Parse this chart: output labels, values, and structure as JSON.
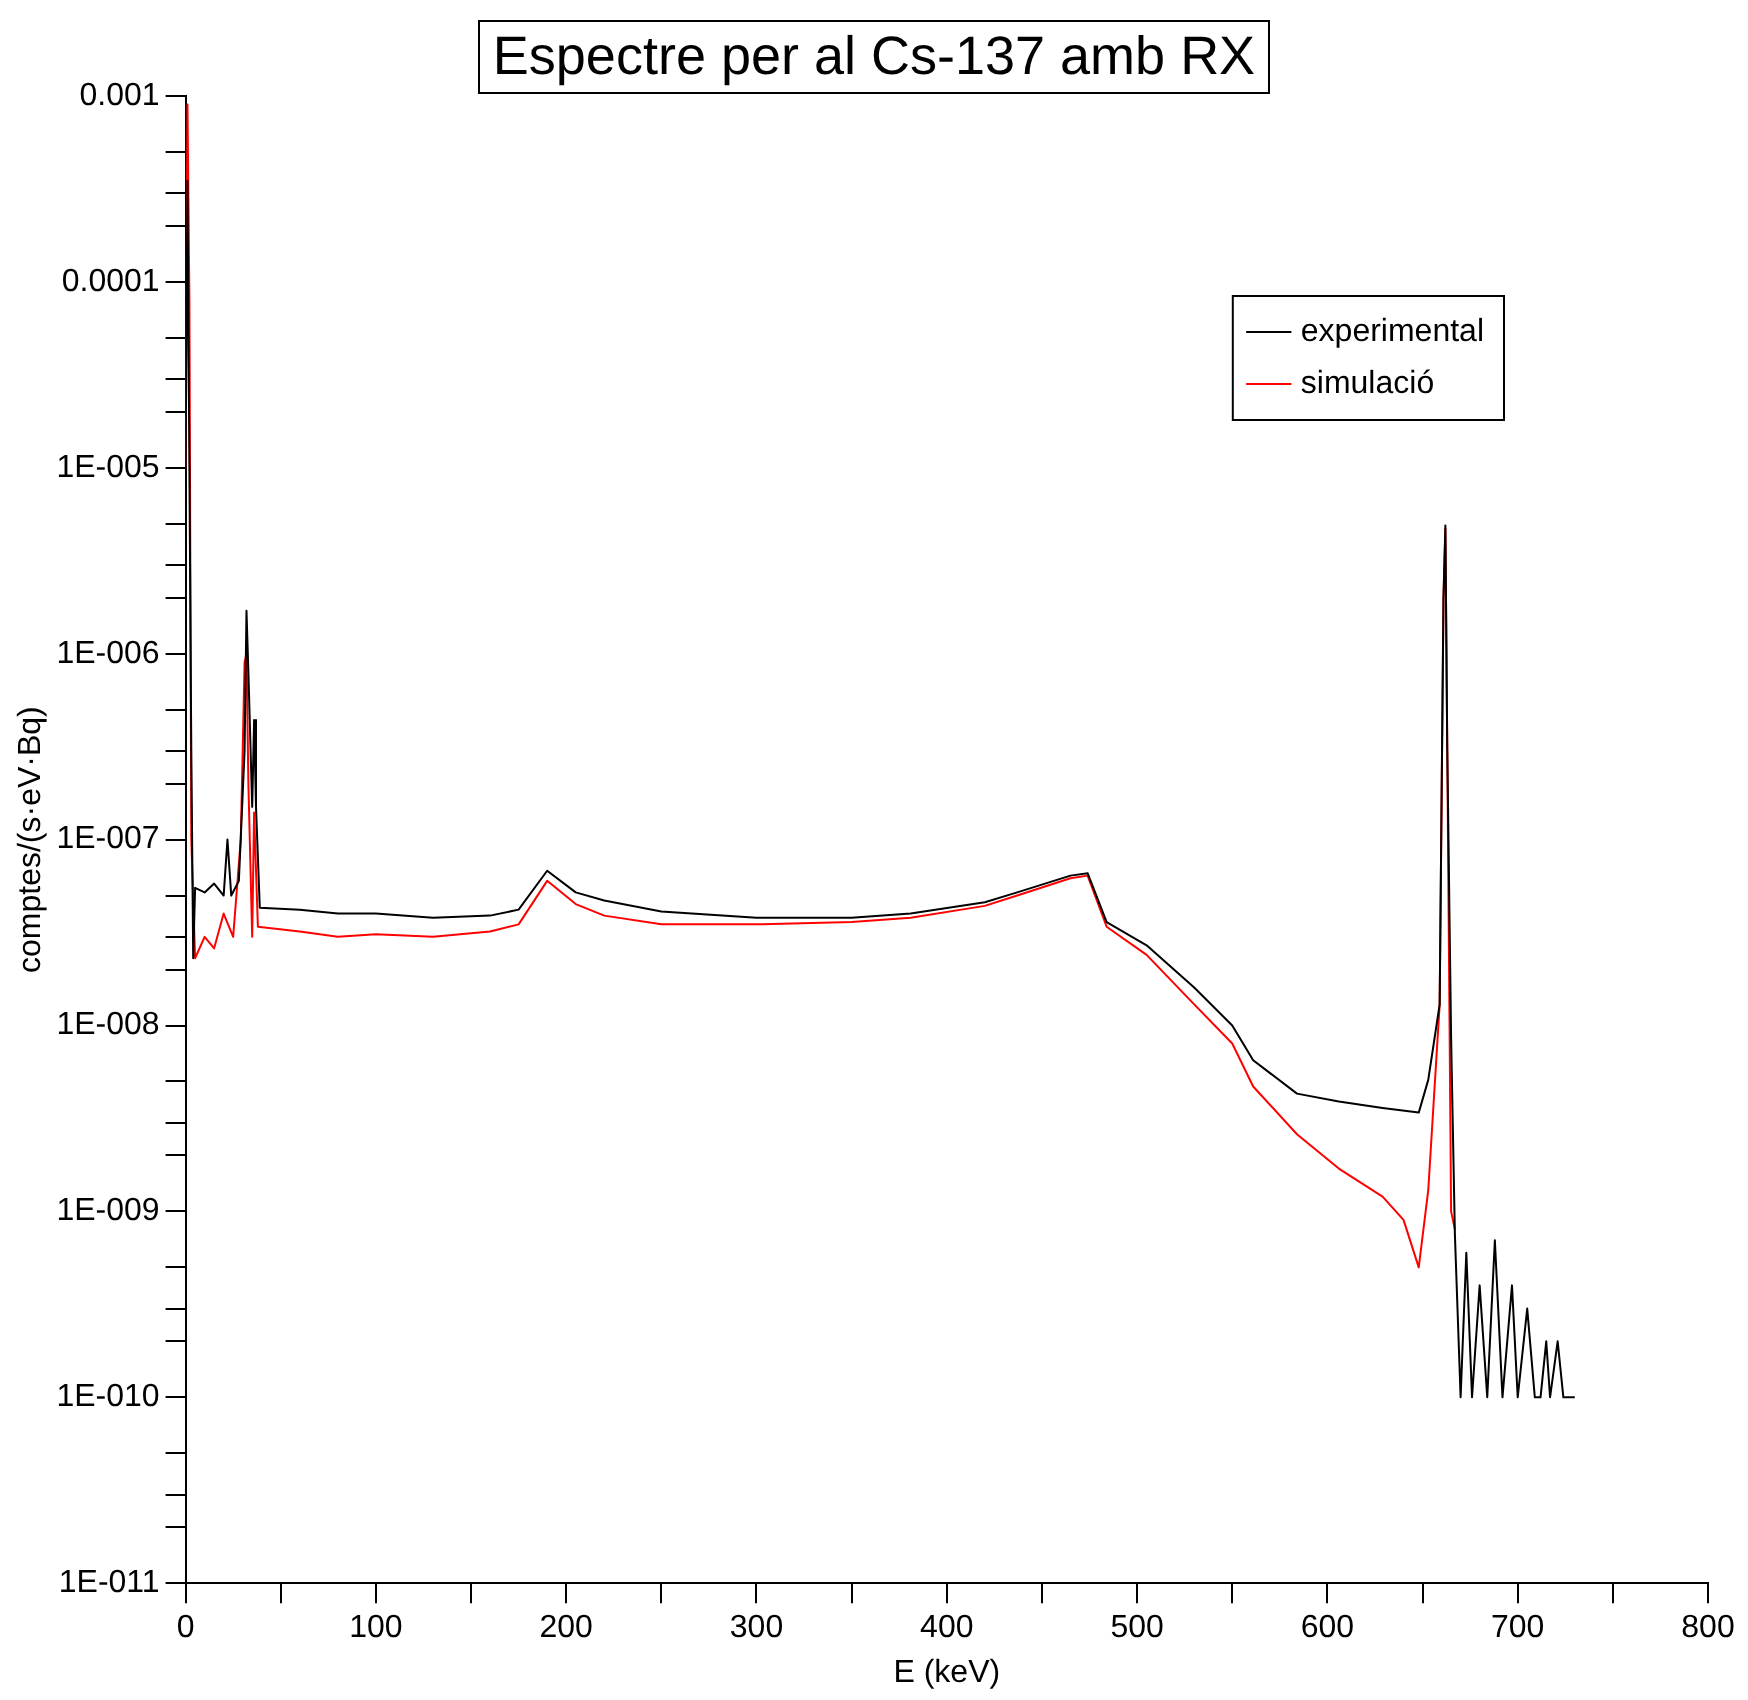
{
  "chart_data": {
    "type": "line",
    "title": "Espectre per al Cs-137 amb RX",
    "xlabel": "E (keV)",
    "ylabel": "comptes/(s·eV·Bq)",
    "log": "y",
    "grid": false,
    "legend": "top right",
    "marker": "none",
    "line_style": "solid",
    "xlim": [
      0,
      800
    ],
    "ylim": [
      1e-11,
      0.001
    ],
    "xticks": [
      0,
      {
        "value": 50,
        "label": null
      },
      100,
      {
        "value": 150,
        "label": null
      },
      200,
      {
        "value": 250,
        "label": null
      },
      300,
      {
        "value": 350,
        "label": null
      },
      400,
      {
        "value": 450,
        "label": null
      },
      500,
      {
        "value": 550,
        "label": null
      },
      600,
      {
        "value": 650,
        "label": null
      },
      700,
      {
        "value": 750,
        "label": null
      },
      800
    ],
    "yticks": [
      {
        "value": 1e-11,
        "label": "1E-011"
      },
      {
        "value": 2e-11,
        "label": null
      },
      {
        "value": 3e-11,
        "label": null
      },
      {
        "value": 5e-11,
        "label": null
      },
      {
        "value": 1e-10,
        "label": "1E-010"
      },
      {
        "value": 2e-10,
        "label": null
      },
      {
        "value": 3e-10,
        "label": null
      },
      {
        "value": 5e-10,
        "label": null
      },
      {
        "value": 1e-09,
        "label": "1E-009"
      },
      {
        "value": 2e-09,
        "label": null
      },
      {
        "value": 3e-09,
        "label": null
      },
      {
        "value": 5e-09,
        "label": null
      },
      {
        "value": 1e-08,
        "label": "1E-008"
      },
      {
        "value": 2e-08,
        "label": null
      },
      {
        "value": 3e-08,
        "label": null
      },
      {
        "value": 5e-08,
        "label": null
      },
      {
        "value": 1e-07,
        "label": "1E-007"
      },
      {
        "value": 2e-07,
        "label": null
      },
      {
        "value": 3e-07,
        "label": null
      },
      {
        "value": 5e-07,
        "label": null
      },
      {
        "value": 1e-06,
        "label": "1E-006"
      },
      {
        "value": 2e-06,
        "label": null
      },
      {
        "value": 3e-06,
        "label": null
      },
      {
        "value": 5e-06,
        "label": null
      },
      {
        "value": 1e-05,
        "label": "1E-005"
      },
      {
        "value": 2e-05,
        "label": null
      },
      {
        "value": 3e-05,
        "label": null
      },
      {
        "value": 5e-05,
        "label": null
      },
      {
        "value": 0.0001,
        "label": "0.0001"
      },
      {
        "value": 0.0002,
        "label": null
      },
      {
        "value": 0.0003,
        "label": null
      },
      {
        "value": 0.0005,
        "label": null
      },
      {
        "value": 0.001,
        "label": "0.001"
      }
    ],
    "series": [
      {
        "name": "experimental",
        "color": "#000000",
        "x": [
          0,
          1,
          2,
          3,
          4,
          5,
          10,
          15,
          20,
          22,
          24,
          28,
          31,
          32,
          33,
          35,
          36,
          37,
          39,
          60,
          80,
          100,
          130,
          160,
          175,
          190,
          205,
          220,
          250,
          300,
          350,
          381,
          420,
          437,
          465,
          474,
          484,
          505,
          530,
          550,
          561,
          584,
          606,
          629,
          648,
          653,
          659,
          661,
          662,
          663,
          665,
          667,
          670,
          673,
          676,
          680,
          684,
          688,
          692,
          697,
          700,
          705,
          709,
          712,
          715,
          717,
          721,
          724,
          730
        ],
        "values": [
          1e-05,
          0.00035,
          1e-05,
          3e-07,
          2.3e-08,
          5.5e-08,
          5.2e-08,
          5.8e-08,
          5e-08,
          1e-07,
          5e-08,
          6e-08,
          3e-07,
          1.7e-06,
          8e-07,
          1.5e-07,
          4.4e-07,
          1.5e-07,
          4.3e-08,
          4.2e-08,
          4e-08,
          4e-08,
          3.8e-08,
          3.9e-08,
          4.2e-08,
          6.8e-08,
          5.2e-08,
          4.7e-08,
          4.1e-08,
          3.8e-08,
          3.8e-08,
          4e-08,
          4.6e-08,
          5.2e-08,
          6.4e-08,
          6.6e-08,
          3.6e-08,
          2.7e-08,
          1.6e-08,
          1e-08,
          6.5e-09,
          4.3e-09,
          3.9e-09,
          3.6e-09,
          3.4e-09,
          5.1e-09,
          1.3e-08,
          2e-06,
          4.9e-06,
          3e-07,
          8.7e-09,
          7.5e-10,
          1e-10,
          6e-10,
          1e-10,
          4e-10,
          1e-10,
          7e-10,
          1e-10,
          4e-10,
          1e-10,
          3e-10,
          1e-10,
          1e-10,
          2e-10,
          1e-10,
          2e-10,
          1e-10,
          1e-10
        ]
      },
      {
        "name": "simulació",
        "color": "#ff0000",
        "x": [
          0,
          1,
          2,
          3,
          5,
          10,
          15,
          20,
          25,
          29,
          31,
          32,
          33,
          35,
          36,
          38,
          60,
          80,
          100,
          130,
          160,
          175,
          190,
          205,
          220,
          250,
          300,
          350,
          381,
          420,
          437,
          465,
          474,
          484,
          505,
          530,
          550,
          561,
          584,
          606,
          629,
          640,
          648,
          653,
          659,
          661,
          662,
          663,
          665,
          667
        ],
        "values": [
          1e-05,
          0.0009,
          8e-05,
          1e-07,
          2.3e-08,
          3e-08,
          2.6e-08,
          4e-08,
          3e-08,
          1e-07,
          9e-07,
          1e-06,
          2e-07,
          3e-08,
          1.4e-07,
          3.4e-08,
          3.2e-08,
          3e-08,
          3.1e-08,
          3e-08,
          3.2e-08,
          3.5e-08,
          6e-08,
          4.5e-08,
          3.9e-08,
          3.5e-08,
          3.5e-08,
          3.6e-08,
          3.8e-08,
          4.4e-08,
          5e-08,
          6.2e-08,
          6.4e-08,
          3.4e-08,
          2.4e-08,
          1.3e-08,
          8e-09,
          4.7e-09,
          2.6e-09,
          1.7e-09,
          1.2e-09,
          9e-10,
          5e-10,
          1.3e-09,
          1.3e-08,
          2e-06,
          4.7e-06,
          3e-07,
          1e-09,
          8e-10
        ]
      }
    ]
  }
}
